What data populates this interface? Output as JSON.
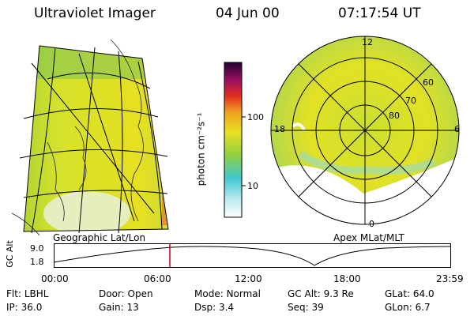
{
  "header": {
    "instrument": "Ultraviolet Imager",
    "date": "04 Jun 00",
    "time": "07:17:54 UT"
  },
  "geo_panel": {
    "label": "Geographic Lat/Lon"
  },
  "polar_panel": {
    "label": "Apex MLat/MLT",
    "mlt_labels": [
      "12",
      "6",
      "0",
      "18"
    ],
    "lat_labels": [
      "60",
      "70",
      "80"
    ]
  },
  "colorbar": {
    "unit_label": "photon cm⁻²s⁻¹",
    "ticks": [
      "100",
      "10"
    ],
    "scale": "log"
  },
  "altitude_strip": {
    "axis_label": "GC Alt",
    "ticks": [
      "9.0",
      "1.8"
    ],
    "time_ticks": [
      "00:00",
      "06:00",
      "12:00",
      "18:00",
      "23:59"
    ],
    "marker_color": "#cc0000"
  },
  "info": {
    "row1": [
      {
        "key": "Flt:",
        "val": "LBHL"
      },
      {
        "key": "Door:",
        "val": "Open"
      },
      {
        "key": "Mode:",
        "val": "Normal"
      },
      {
        "key": "GC Alt:",
        "val": "9.3 Re"
      },
      {
        "key": "GLat:",
        "val": "64.0"
      }
    ],
    "row2": [
      {
        "key": "IP:",
        "val": "36.0"
      },
      {
        "key": "Gain:",
        "val": "13"
      },
      {
        "key": "Dsp:",
        "val": "3.4"
      },
      {
        "key": "Seq:",
        "val": "39"
      },
      {
        "key": "GLon:",
        "val": "6.7"
      }
    ]
  }
}
